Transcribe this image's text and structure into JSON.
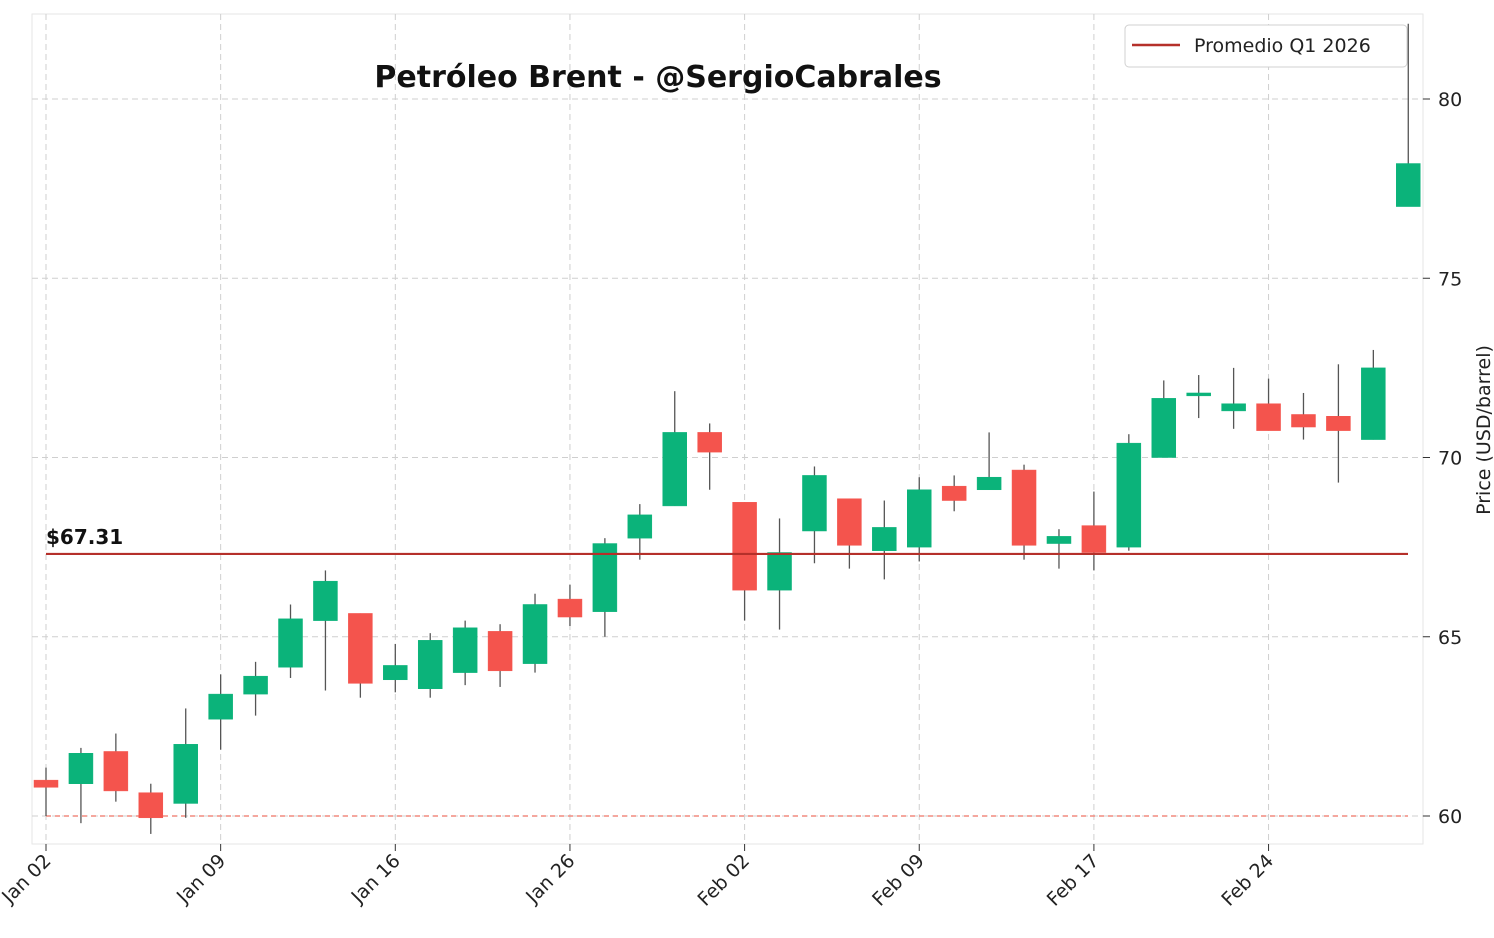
{
  "chart_data": {
    "type": "candlestick",
    "title": "Petróleo Brent - @SergioCabrales",
    "xlabel": "",
    "ylabel": "Price (USD/barrel)",
    "ylim": [
      59.3,
      82.2
    ],
    "y_ticks": [
      60,
      65,
      70,
      75,
      80
    ],
    "x_tick_labels": [
      "Jan 02",
      "Jan 09",
      "Jan 16",
      "Jan 26",
      "Feb 02",
      "Feb 09",
      "Feb 17",
      "Feb 24"
    ],
    "x_tick_indices": [
      0,
      5,
      10,
      15,
      20,
      25,
      30,
      35
    ],
    "grid": true,
    "legend": {
      "position": "upper right",
      "entries": [
        "Promedio Q1 2026"
      ]
    },
    "colors": {
      "up": "#0bb37a",
      "down": "#f4544d",
      "average_line": "#b5302a",
      "reference_line": "#f28a7f",
      "wick": "#555555"
    },
    "average": {
      "label": "Promedio Q1 2026",
      "value": 67.31,
      "annotation": "$67.31"
    },
    "reference_line": {
      "value": 60.0,
      "style": "dashed"
    },
    "candles": [
      {
        "o": 61.0,
        "h": 61.35,
        "l": 60.0,
        "c": 60.8
      },
      {
        "o": 60.9,
        "h": 61.9,
        "l": 59.8,
        "c": 61.75
      },
      {
        "o": 61.8,
        "h": 62.3,
        "l": 60.4,
        "c": 60.7
      },
      {
        "o": 60.65,
        "h": 60.9,
        "l": 59.5,
        "c": 59.95
      },
      {
        "o": 60.35,
        "h": 63.0,
        "l": 59.95,
        "c": 62.0
      },
      {
        "o": 62.7,
        "h": 63.95,
        "l": 61.85,
        "c": 63.4
      },
      {
        "o": 63.4,
        "h": 64.3,
        "l": 62.8,
        "c": 63.9
      },
      {
        "o": 64.15,
        "h": 65.9,
        "l": 63.85,
        "c": 65.5
      },
      {
        "o": 65.45,
        "h": 66.85,
        "l": 63.5,
        "c": 66.55
      },
      {
        "o": 65.65,
        "h": 65.65,
        "l": 63.3,
        "c": 63.7
      },
      {
        "o": 63.8,
        "h": 64.8,
        "l": 63.45,
        "c": 64.2
      },
      {
        "o": 63.55,
        "h": 65.1,
        "l": 63.3,
        "c": 64.9
      },
      {
        "o": 64.0,
        "h": 65.45,
        "l": 63.65,
        "c": 65.25
      },
      {
        "o": 65.15,
        "h": 65.35,
        "l": 63.6,
        "c": 64.05
      },
      {
        "o": 64.25,
        "h": 66.2,
        "l": 64.0,
        "c": 65.9
      },
      {
        "o": 66.05,
        "h": 66.45,
        "l": 65.3,
        "c": 65.55
      },
      {
        "o": 65.7,
        "h": 67.75,
        "l": 65.0,
        "c": 67.6
      },
      {
        "o": 67.75,
        "h": 68.7,
        "l": 67.15,
        "c": 68.4
      },
      {
        "o": 68.65,
        "h": 71.85,
        "l": 68.65,
        "c": 70.7
      },
      {
        "o": 70.7,
        "h": 70.95,
        "l": 69.1,
        "c": 70.15
      },
      {
        "o": 68.75,
        "h": 68.75,
        "l": 65.45,
        "c": 66.3
      },
      {
        "o": 66.3,
        "h": 68.3,
        "l": 65.2,
        "c": 67.35
      },
      {
        "o": 67.95,
        "h": 69.75,
        "l": 67.05,
        "c": 69.5
      },
      {
        "o": 68.85,
        "h": 68.85,
        "l": 66.9,
        "c": 67.55
      },
      {
        "o": 67.4,
        "h": 68.8,
        "l": 66.6,
        "c": 68.05
      },
      {
        "o": 67.5,
        "h": 69.45,
        "l": 67.1,
        "c": 69.1
      },
      {
        "o": 69.2,
        "h": 69.5,
        "l": 68.5,
        "c": 68.8
      },
      {
        "o": 69.1,
        "h": 70.7,
        "l": 69.1,
        "c": 69.45
      },
      {
        "o": 69.65,
        "h": 69.8,
        "l": 67.15,
        "c": 67.55
      },
      {
        "o": 67.6,
        "h": 68.0,
        "l": 66.9,
        "c": 67.8
      },
      {
        "o": 68.1,
        "h": 69.05,
        "l": 66.85,
        "c": 67.35
      },
      {
        "o": 67.5,
        "h": 70.65,
        "l": 67.4,
        "c": 70.4
      },
      {
        "o": 70.0,
        "h": 72.15,
        "l": 70.0,
        "c": 71.65
      },
      {
        "o": 71.72,
        "h": 72.3,
        "l": 71.1,
        "c": 71.8
      },
      {
        "o": 71.3,
        "h": 72.5,
        "l": 70.8,
        "c": 71.5
      },
      {
        "o": 71.5,
        "h": 72.2,
        "l": 70.75,
        "c": 70.75
      },
      {
        "o": 71.2,
        "h": 71.8,
        "l": 70.5,
        "c": 70.85
      },
      {
        "o": 71.15,
        "h": 72.6,
        "l": 69.3,
        "c": 70.75
      },
      {
        "o": 70.5,
        "h": 73.0,
        "l": 70.5,
        "c": 72.5
      },
      {
        "o": 77.0,
        "h": 82.1,
        "l": 77.0,
        "c": 78.2
      }
    ]
  }
}
